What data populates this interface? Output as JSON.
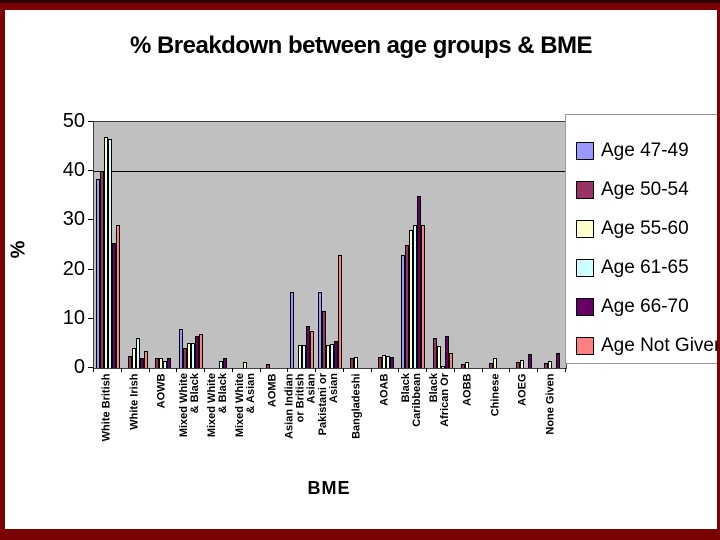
{
  "title": "% Breakdown between age groups & BME",
  "frame": {
    "border_color": "#7b0202",
    "background": "#ffffff"
  },
  "chart_data": {
    "type": "bar",
    "title": "% Breakdown between age groups & BME",
    "xlabel": "BME",
    "ylabel": "%",
    "ylim": [
      0,
      50
    ],
    "yticks": [
      0,
      10,
      20,
      30,
      40,
      50
    ],
    "gridlines": [
      40
    ],
    "plot_background": "#c0c0c0",
    "legend_position": "right",
    "categories": [
      {
        "name": "White British",
        "lines": [
          "White British"
        ]
      },
      {
        "name": "White Irish",
        "lines": [
          "White Irish"
        ]
      },
      {
        "name": "AOWB",
        "lines": [
          "AOWB"
        ]
      },
      {
        "name": "Mixed White & Black",
        "lines": [
          "Mixed White",
          "& Black"
        ]
      },
      {
        "name": "Mixed White & Black",
        "lines": [
          "Mixed White",
          "& Black"
        ]
      },
      {
        "name": "Mixed White & Asian",
        "lines": [
          "Mixed White",
          "& Asian"
        ]
      },
      {
        "name": "AOMB",
        "lines": [
          "AOMB"
        ]
      },
      {
        "name": "Asian Indian or British Asian",
        "lines": [
          "Asian Indian",
          "or British",
          "Asian"
        ]
      },
      {
        "name": "Pakistani or Asian",
        "lines": [
          "Pakistani or",
          "Asian"
        ]
      },
      {
        "name": "Bangladeshi",
        "lines": [
          "Bangladeshi"
        ]
      },
      {
        "name": "AOAB",
        "lines": [
          "AOAB"
        ]
      },
      {
        "name": "Black Caribbean",
        "lines": [
          "Black",
          "Caribbean"
        ]
      },
      {
        "name": "Black African Or",
        "lines": [
          "Black",
          "African Or"
        ]
      },
      {
        "name": "AOBB",
        "lines": [
          "AOBB"
        ]
      },
      {
        "name": "Chinese",
        "lines": [
          "Chinese"
        ]
      },
      {
        "name": "AOEG",
        "lines": [
          "AOEG"
        ]
      },
      {
        "name": "None Given",
        "lines": [
          "None Given"
        ]
      }
    ],
    "series": [
      {
        "name": "Age 47-49",
        "color": "#9999ff",
        "values": [
          38.5,
          0,
          0,
          8,
          0,
          0,
          0,
          15.5,
          15.5,
          0,
          0,
          23,
          0,
          0,
          0,
          0,
          0
        ]
      },
      {
        "name": "Age 50-54",
        "color": "#993366",
        "values": [
          40,
          2.5,
          2,
          4,
          0,
          0,
          0.8,
          0,
          11.5,
          2,
          2.3,
          25,
          6,
          0.8,
          1,
          1.2,
          1
        ]
      },
      {
        "name": "Age 55-60",
        "color": "#ffffcc",
        "values": [
          47,
          4,
          2,
          5,
          0,
          1.3,
          0,
          4.7,
          4.7,
          2.3,
          2.7,
          28,
          4.5,
          1.3,
          2,
          1.7,
          1.5
        ]
      },
      {
        "name": "Age 61-65",
        "color": "#ccffff",
        "values": [
          46.5,
          6,
          1.5,
          5,
          1.5,
          0,
          0,
          4.7,
          4.8,
          0,
          2.5,
          29,
          0.5,
          0,
          0,
          0,
          0
        ]
      },
      {
        "name": "Age 66-70",
        "color": "#660066",
        "values": [
          25.5,
          2,
          2,
          6.5,
          2,
          0,
          0,
          8.5,
          5.5,
          0,
          2.3,
          35,
          6.5,
          0,
          0,
          2.8,
          3
        ]
      },
      {
        "name": "Age Not Given",
        "color": "#ff8080",
        "values": [
          29,
          3.5,
          0,
          7,
          0,
          0,
          0,
          7.5,
          23,
          0,
          0,
          29,
          3,
          0,
          0,
          0,
          0
        ]
      }
    ]
  }
}
